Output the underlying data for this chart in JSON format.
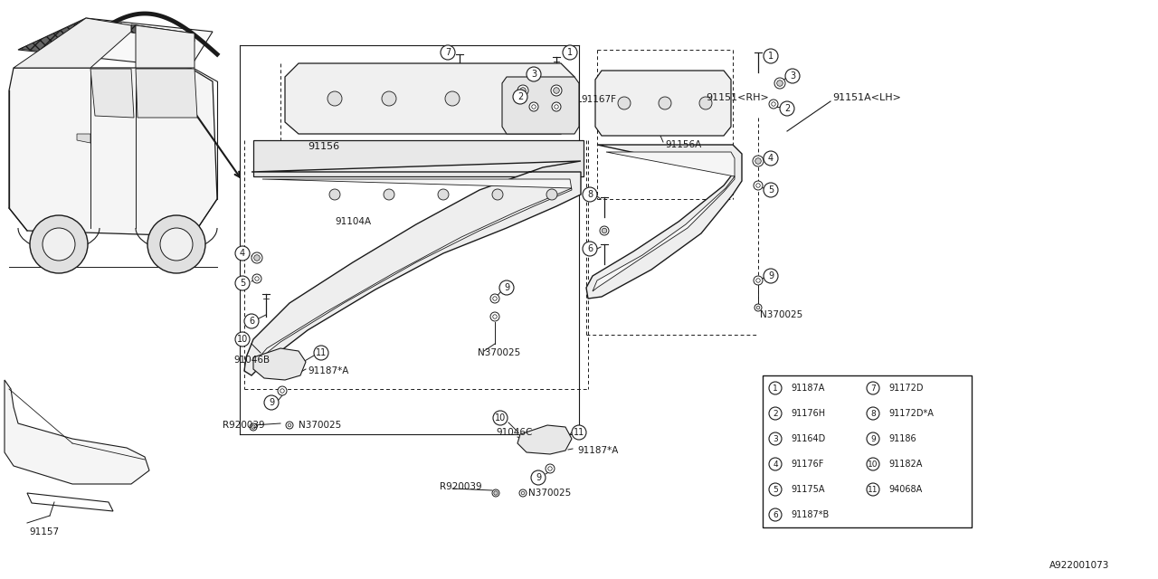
{
  "bg_color": "#ffffff",
  "line_color": "#1a1a1a",
  "fig_width": 12.8,
  "fig_height": 6.4,
  "part_table": [
    [
      "1",
      "91187A",
      "7",
      "91172D"
    ],
    [
      "2",
      "91176H",
      "8",
      "91172D*A"
    ],
    [
      "3",
      "91164D",
      "9",
      "91186"
    ],
    [
      "4",
      "91176F",
      "10",
      "91182A"
    ],
    [
      "5",
      "91175A",
      "11",
      "94068A"
    ],
    [
      "6",
      "91187*B",
      "",
      ""
    ]
  ],
  "diagram_id": "A922001073",
  "label_91151RH": "91151<RH>",
  "label_91151ALH": "91151A<LH>",
  "label_91156": "91156",
  "label_91156A": "91156A",
  "label_91104A": "91104A",
  "label_91167F": "91167F",
  "label_91046B": "91046B",
  "label_91046C": "91046C",
  "label_91187A": "91187*A",
  "label_91157": "91157",
  "label_N370025": "N370025",
  "label_R920039": "R920039"
}
